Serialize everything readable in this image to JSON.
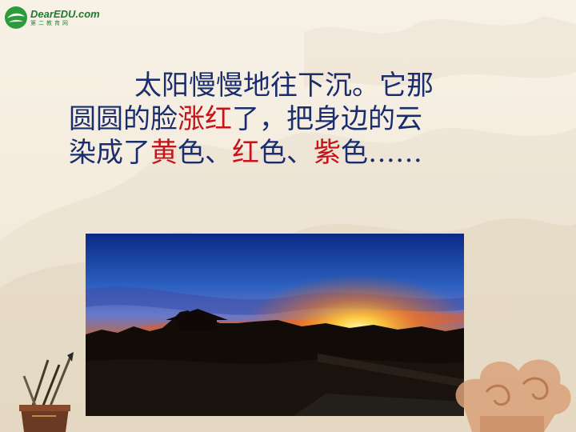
{
  "logo": {
    "brand": "DearEDU.com",
    "sub": "第二教育网",
    "icon": "globe-leaf-icon"
  },
  "poem": {
    "line1": "太阳慢慢地往下沉。它那",
    "line2_a": "圆圆的脸",
    "line2_red": "涨红",
    "line2_b": "了，把身边的云",
    "line3_a": "染成了",
    "line3_red1": "黄",
    "line3_b": "色、",
    "line3_red2": "红",
    "line3_c": "色、",
    "line3_red3": "紫",
    "line3_d": "色……"
  },
  "colors": {
    "text": "#1a2e6e",
    "highlight": "#c4141a",
    "background": "#f5eee2"
  },
  "image": {
    "subject": "sunset-over-great-wall-photo"
  },
  "decorations": [
    "brush-pot-icon",
    "auspicious-cloud-icon",
    "mountain-wash-background"
  ]
}
